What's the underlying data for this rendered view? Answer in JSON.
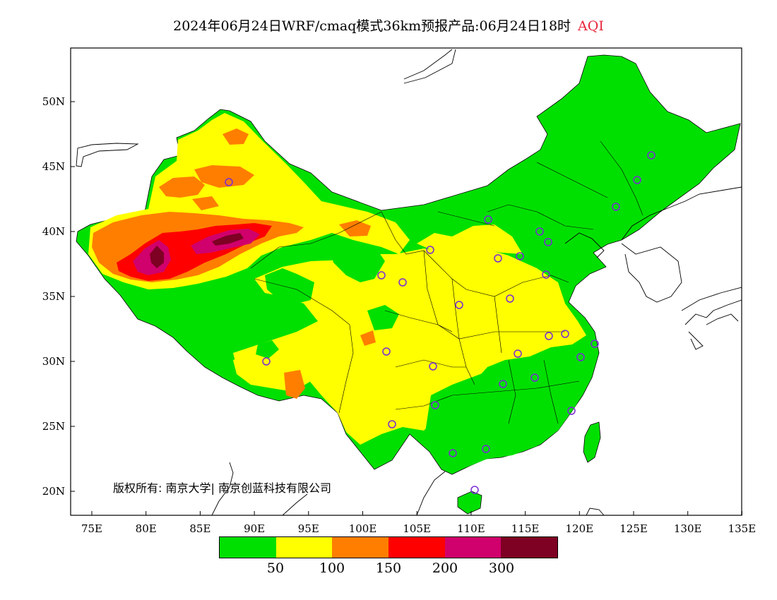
{
  "title": {
    "main": "2024年06月24日WRF/cmaq模式36km预报产品:06月24日18时",
    "product": "AQI"
  },
  "map": {
    "x_ticks": [
      "75E",
      "80E",
      "85E",
      "90E",
      "95E",
      "100E",
      "105E",
      "110E",
      "115E",
      "120E",
      "125E",
      "130E",
      "135E"
    ],
    "y_ticks": [
      "50N",
      "45N",
      "40N",
      "35N",
      "30N",
      "25N",
      "20N"
    ],
    "copyright": "版权所有: 南京大学| 南京创蓝科技有限公司",
    "station_marker_color": "#7a2bd6"
  },
  "legend": {
    "colors": [
      "#00e000",
      "#ffff00",
      "#ff7e00",
      "#ff0000",
      "#d0006c",
      "#7e0023"
    ],
    "labels": [
      "50",
      "100",
      "150",
      "200",
      "300"
    ]
  }
}
